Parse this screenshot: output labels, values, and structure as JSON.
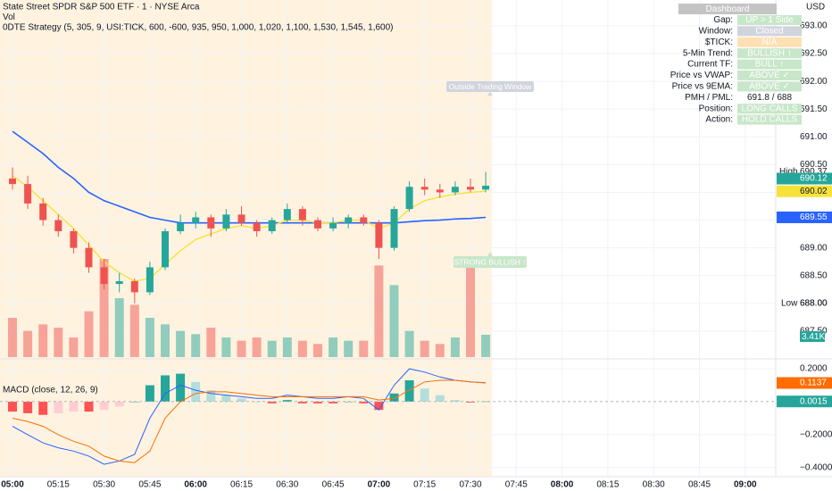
{
  "header": {
    "symbol": "State Street SPDR S&P 500 ETF · 1 · NYSE Arca",
    "volume": "Vol",
    "strategy": "0DTE Strategy (5, 305, 9, USI:TICK, 600, -600, 935, 950, 1,000, 1,020, 1,100, 1,530, 1,545, 1,600)",
    "currency": "USD"
  },
  "dashboard": {
    "title": "Dashboard",
    "rows": [
      {
        "label": "Gap:",
        "value": "UP > 1 Side",
        "color": "#c8e6c9"
      },
      {
        "label": "Window:",
        "value": "Closed",
        "color": "#d1d4dc"
      },
      {
        "label": "$TICK:",
        "value": "N/A",
        "color": "#ffe0b2"
      },
      {
        "label": "5-Min Trend:",
        "value": "BULLISH ↑",
        "color": "#c8e6c9"
      },
      {
        "label": "Current TF:",
        "value": "BULL ↑",
        "color": "#c8e6c9"
      },
      {
        "label": "Price vs VWAP:",
        "value": "ABOVE ✓",
        "color": "#c8e6c9"
      },
      {
        "label": "Price vs 9EMA:",
        "value": "ABOVE ✓",
        "color": "#c8e6c9"
      },
      {
        "label": "PMH / PML:",
        "value": "691.8 / 688",
        "color": "#ffffff"
      },
      {
        "label": "Position:",
        "value": "LONG CALLS",
        "color": "#c8e6c9"
      },
      {
        "label": "Action:",
        "value": "HOLD CALLS",
        "color": "#c8e6c9"
      }
    ]
  },
  "annotations": {
    "window": "Outside Trading Window",
    "signal": "STRONG BULLISH ↑"
  },
  "chart_data": [
    {
      "type": "candlestick",
      "x": [
        "05:00",
        "05:05",
        "05:10",
        "05:15",
        "05:20",
        "05:25",
        "05:30",
        "05:35",
        "05:40",
        "05:45",
        "05:50",
        "05:55",
        "06:00",
        "06:05",
        "06:10",
        "06:15",
        "06:20",
        "06:25",
        "06:30",
        "06:35",
        "06:40",
        "06:45",
        "06:50",
        "06:55",
        "07:00",
        "07:05",
        "07:10",
        "07:15",
        "07:20",
        "07:25",
        "07:30",
        "07:35"
      ],
      "open": [
        690.25,
        690.15,
        689.8,
        689.5,
        689.3,
        689.0,
        688.65,
        688.35,
        688.4,
        688.2,
        688.65,
        689.3,
        689.45,
        689.55,
        689.35,
        689.6,
        689.45,
        689.3,
        689.5,
        689.7,
        689.5,
        689.35,
        689.45,
        689.55,
        689.45,
        689.0,
        689.7,
        690.1,
        690.05,
        690.0,
        690.1,
        690.05
      ],
      "high": [
        690.45,
        690.3,
        689.9,
        689.6,
        689.35,
        689.1,
        688.8,
        688.55,
        688.45,
        688.75,
        689.35,
        689.6,
        689.65,
        689.6,
        689.7,
        689.75,
        689.5,
        689.55,
        689.8,
        689.75,
        689.55,
        689.55,
        689.6,
        689.6,
        689.5,
        689.75,
        690.2,
        690.25,
        690.15,
        690.2,
        690.25,
        690.37
      ],
      "low": [
        690.05,
        689.7,
        689.4,
        689.2,
        688.9,
        688.55,
        688.25,
        688.2,
        688.0,
        688.15,
        688.6,
        689.25,
        689.35,
        689.2,
        689.3,
        689.4,
        689.2,
        689.25,
        689.45,
        689.4,
        689.3,
        689.3,
        689.35,
        689.4,
        688.8,
        688.95,
        689.65,
        689.95,
        689.9,
        689.95,
        690.0,
        690.0
      ],
      "close": [
        690.15,
        689.8,
        689.5,
        689.3,
        689.0,
        688.65,
        688.35,
        688.4,
        688.2,
        688.65,
        689.3,
        689.45,
        689.55,
        689.35,
        689.6,
        689.45,
        689.3,
        689.5,
        689.7,
        689.5,
        689.35,
        689.45,
        689.55,
        689.45,
        689.0,
        689.7,
        690.1,
        690.05,
        690.0,
        690.1,
        690.05,
        690.12
      ],
      "up_color": "#26a69a",
      "down_color": "#ef5350",
      "overlays": {
        "vwap": {
          "color": "#2962ff",
          "values": [
            691.1,
            690.9,
            690.7,
            690.45,
            690.25,
            690.0,
            689.85,
            689.75,
            689.65,
            689.55,
            689.5,
            689.45,
            689.45,
            689.45,
            689.45,
            689.45,
            689.45,
            689.45,
            689.45,
            689.45,
            689.45,
            689.45,
            689.45,
            689.45,
            689.45,
            689.45,
            689.47,
            689.49,
            689.5,
            689.52,
            689.53,
            689.55
          ]
        },
        "ema9": {
          "color": "#f7e23a",
          "values": [
            690.3,
            690.1,
            689.85,
            689.6,
            689.35,
            689.05,
            688.75,
            688.55,
            688.4,
            688.45,
            688.7,
            688.95,
            689.15,
            689.25,
            689.35,
            689.4,
            689.35,
            689.4,
            689.5,
            689.5,
            689.45,
            689.45,
            689.5,
            689.5,
            689.35,
            689.45,
            689.7,
            689.85,
            689.92,
            689.97,
            690.0,
            690.02
          ]
        }
      },
      "volume": {
        "values": [
          6000,
          4000,
          5000,
          4500,
          3000,
          7000,
          15000,
          9000,
          8000,
          6000,
          5000,
          4000,
          3500,
          4500,
          3000,
          2500,
          3000,
          2500,
          3000,
          2500,
          2000,
          3000,
          2500,
          2500,
          14000,
          11000,
          4000,
          2500,
          2000,
          3000,
          15000,
          3410
        ],
        "last_label": "3.41K",
        "up_color": "rgba(38,166,154,0.5)",
        "down_color": "rgba(239,83,80,0.5)"
      },
      "high_marker": "High",
      "low_marker": {
        "text": "Low",
        "label": "688.00"
      },
      "ylim": [
        687.0,
        693.45
      ],
      "yticks": [
        {
          "value": 693,
          "label": "693.00"
        },
        {
          "value": 692.5,
          "label": "692.50"
        },
        {
          "value": 692,
          "label": "692.00"
        },
        {
          "value": 691.5,
          "label": "691.50"
        },
        {
          "value": 691,
          "label": "691.00"
        },
        {
          "value": 690.5,
          "label": "690.50"
        },
        {
          "value": 690,
          "label": "690.00"
        },
        {
          "value": 689.5,
          "label": "689.50"
        },
        {
          "value": 689,
          "label": "689.00"
        },
        {
          "value": 688.5,
          "label": "688.50"
        },
        {
          "value": 688,
          "label": "688.00"
        },
        {
          "value": 687.5,
          "label": "687.50"
        }
      ],
      "xticks": [
        "05:00",
        "05:15",
        "05:30",
        "05:45",
        "06:00",
        "06:15",
        "06:30",
        "06:45",
        "07:00",
        "07:15",
        "07:30",
        "07:45",
        "08:00",
        "08:15",
        "08:30",
        "08:45",
        "09:00"
      ],
      "grid": true
    },
    {
      "type": "macd",
      "title": "MACD (close, 12, 26, 9)",
      "histogram": [
        -0.06,
        -0.07,
        -0.08,
        -0.07,
        -0.06,
        -0.06,
        -0.05,
        -0.03,
        0.0,
        0.1,
        0.16,
        0.17,
        0.12,
        0.07,
        0.04,
        0.02,
        0.0,
        -0.01,
        0.01,
        -0.01,
        -0.01,
        -0.01,
        0.0,
        -0.01,
        -0.05,
        0.05,
        0.13,
        0.08,
        0.04,
        0.01,
        -0.005,
        0.0015
      ],
      "macd": {
        "color": "#2962ff",
        "values": [
          -0.15,
          -0.2,
          -0.25,
          -0.28,
          -0.3,
          -0.33,
          -0.38,
          -0.36,
          -0.32,
          -0.1,
          0.05,
          0.1,
          0.07,
          0.05,
          0.04,
          0.03,
          0.02,
          0.02,
          0.04,
          0.03,
          0.02,
          0.02,
          0.03,
          0.02,
          -0.05,
          0.1,
          0.2,
          0.18,
          0.15,
          0.13,
          0.12,
          0.1152
        ]
      },
      "signal": {
        "color": "#ff6d00",
        "values": [
          -0.1,
          -0.12,
          -0.15,
          -0.2,
          -0.24,
          -0.27,
          -0.33,
          -0.36,
          -0.37,
          -0.3,
          -0.1,
          0.0,
          0.05,
          0.06,
          0.06,
          0.05,
          0.04,
          0.03,
          0.03,
          0.03,
          0.03,
          0.03,
          0.03,
          0.03,
          0.01,
          0.02,
          0.07,
          0.12,
          0.13,
          0.13,
          0.12,
          0.1137
        ]
      },
      "ylim": [
        -0.45,
        0.26
      ],
      "yticks": [
        {
          "value": 0.2,
          "label": "0.2000"
        },
        {
          "value": -0.2,
          "label": "−0.2000"
        },
        {
          "value": -0.4,
          "label": "−0.4000"
        }
      ]
    }
  ]
}
